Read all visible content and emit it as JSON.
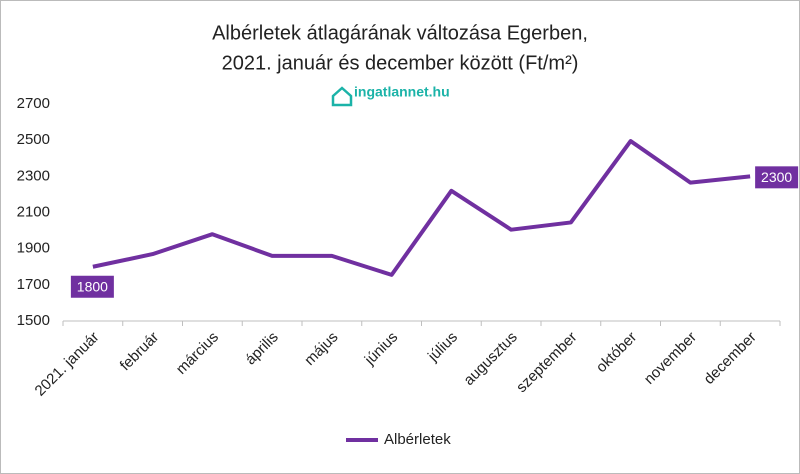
{
  "chart_data": {
    "type": "line",
    "title": [
      "Albérletek átlagárának változása Egerben,",
      "2021. január és december között (Ft/m²)"
    ],
    "logo": "ingatlannet.hu",
    "categories": [
      "2021. január",
      "február",
      "március",
      "április",
      "május",
      "június",
      "július",
      "augusztus",
      "szeptember",
      "október",
      "november",
      "december"
    ],
    "series": [
      {
        "name": "Albérletek",
        "color": "#7030a0",
        "values": [
          1800,
          1870,
          1980,
          1860,
          1860,
          1755,
          2220,
          2005,
          2045,
          2495,
          2265,
          2300
        ]
      }
    ],
    "data_labels": "first-last",
    "ylim": [
      1500,
      2700
    ],
    "yticks": [
      1500,
      1700,
      1900,
      2100,
      2300,
      2500,
      2700
    ],
    "grid": false,
    "legend": "bottom"
  }
}
